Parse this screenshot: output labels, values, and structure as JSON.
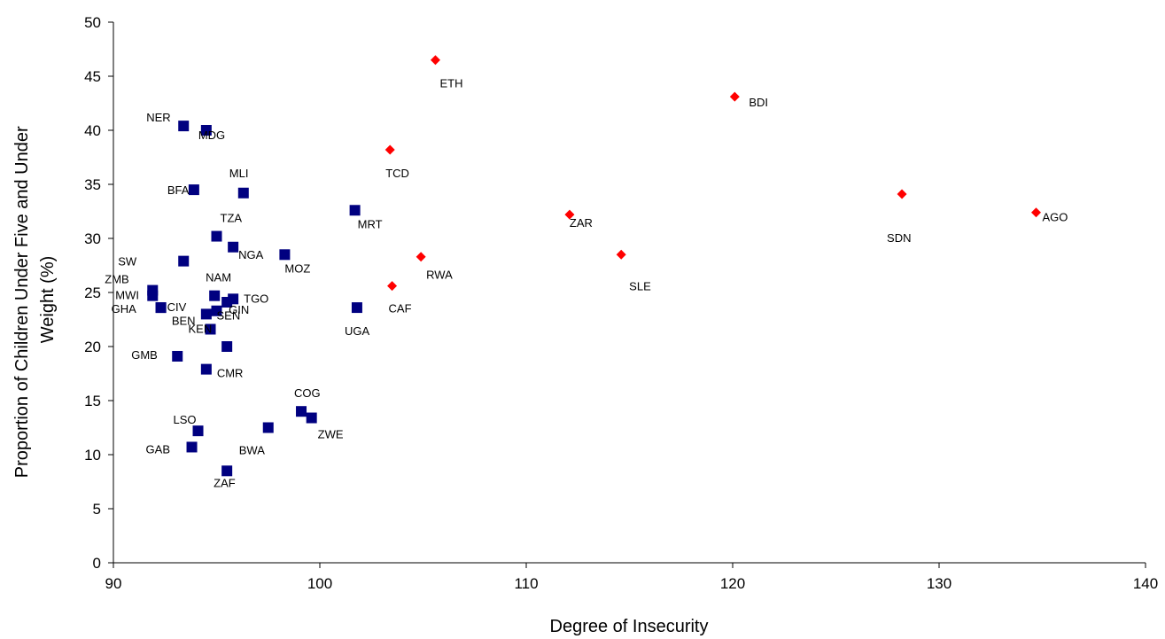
{
  "chart_data": {
    "type": "scatter",
    "title": "",
    "xlabel": "Degree of Insecurity",
    "ylabel_lines": [
      "Proportion of Children Under Five and Under",
      "Weight (%)"
    ],
    "xlim": [
      90,
      140
    ],
    "ylim": [
      0,
      50
    ],
    "x_ticks": [
      90,
      100,
      110,
      120,
      130,
      140
    ],
    "y_ticks": [
      0,
      5,
      10,
      15,
      20,
      25,
      30,
      35,
      40,
      45,
      50
    ],
    "grid": false,
    "legend": "none",
    "colors": {
      "series_a": "#000080",
      "series_b": "#ff0000"
    },
    "series": [
      {
        "marker": "square",
        "points": [
          {
            "label": "NER",
            "x": 93.4,
            "y": 40.4
          },
          {
            "label": "MDG",
            "x": 94.5,
            "y": 40.0
          },
          {
            "label": "BFA",
            "x": 93.9,
            "y": 34.5
          },
          {
            "label": "MLI",
            "x": 96.3,
            "y": 34.2
          },
          {
            "label": "TZA",
            "x": 95.0,
            "y": 30.2
          },
          {
            "label": "NGA",
            "x": 95.8,
            "y": 29.2
          },
          {
            "label": "MOZ",
            "x": 98.3,
            "y": 28.5
          },
          {
            "label": "SW",
            "x": 93.4,
            "y": 27.9
          },
          {
            "label": "ZMB",
            "x": 91.9,
            "y": 25.2
          },
          {
            "label": "MWI",
            "x": 91.9,
            "y": 24.7
          },
          {
            "label": "CIV",
            "x": 92.3,
            "y": 23.6
          },
          {
            "label": "GHA",
            "x": 92.3,
            "y": 23.6
          },
          {
            "label": "NAM",
            "x": 94.9,
            "y": 24.7
          },
          {
            "label": "TGO",
            "x": 95.8,
            "y": 24.4
          },
          {
            "label": "GIN",
            "x": 95.5,
            "y": 24.1
          },
          {
            "label": "BEN",
            "x": 94.5,
            "y": 23.0
          },
          {
            "label": "SEN",
            "x": 95.0,
            "y": 23.3
          },
          {
            "label": "KEN",
            "x": 94.7,
            "y": 21.6
          },
          {
            "label": "GMB",
            "x": 93.1,
            "y": 19.1
          },
          {
            "label": "CMR",
            "x": 94.5,
            "y": 17.9
          },
          {
            "label": "MRT",
            "x": 101.7,
            "y": 32.6
          },
          {
            "label": "UGA",
            "x": 101.8,
            "y": 23.6
          },
          {
            "label": "COG",
            "x": 99.1,
            "y": 14.0
          },
          {
            "label": "ZWE",
            "x": 99.6,
            "y": 13.4
          },
          {
            "label": "BWA",
            "x": 97.5,
            "y": 12.5
          },
          {
            "label": "LSO",
            "x": 94.1,
            "y": 12.2
          },
          {
            "label": "GAB",
            "x": 93.8,
            "y": 10.7
          },
          {
            "label": "ZAF",
            "x": 95.5,
            "y": 8.5
          },
          {
            "label": "",
            "x": 95.5,
            "y": 20.0
          }
        ]
      },
      {
        "marker": "diamond",
        "points": [
          {
            "label": "ETH",
            "x": 105.6,
            "y": 46.5
          },
          {
            "label": "BDI",
            "x": 120.1,
            "y": 43.1
          },
          {
            "label": "TCD",
            "x": 103.4,
            "y": 38.2
          },
          {
            "label": "ZAR",
            "x": 112.1,
            "y": 32.2
          },
          {
            "label": "SDN",
            "x": 128.2,
            "y": 34.1
          },
          {
            "label": "AGO",
            "x": 134.7,
            "y": 32.4
          },
          {
            "label": "RWA",
            "x": 104.9,
            "y": 28.3
          },
          {
            "label": "SLE",
            "x": 114.6,
            "y": 28.5
          },
          {
            "label": "CAF",
            "x": 103.5,
            "y": 25.6
          }
        ]
      }
    ]
  }
}
